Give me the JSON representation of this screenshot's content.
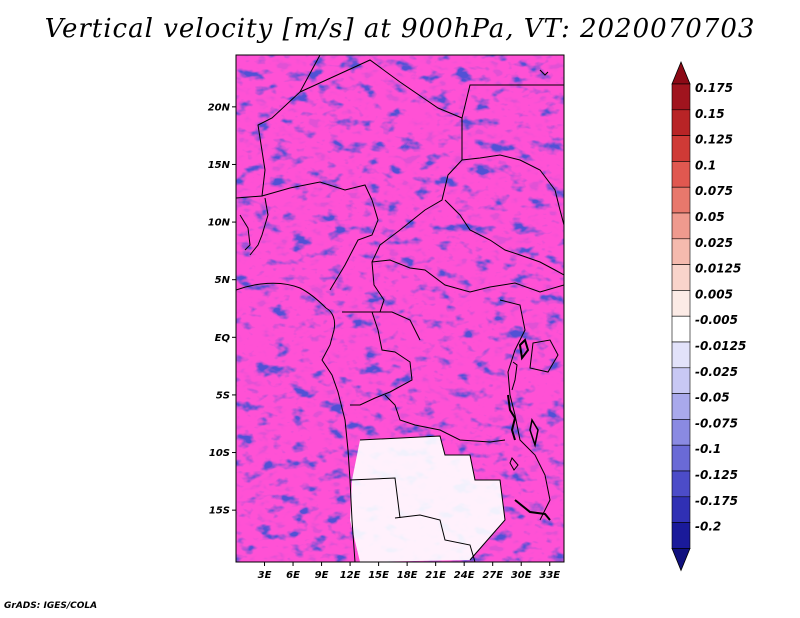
{
  "title": "Vertical velocity [m/s] at 900hPa, VT: 2020070703",
  "footer": "GrADS: IGES/COLA",
  "map": {
    "lat_range": [
      -19.5,
      24.5
    ],
    "lon_range": [
      0,
      34.5
    ],
    "lat_ticks": [
      {
        "value": 20,
        "label": "20N"
      },
      {
        "value": 15,
        "label": "15N"
      },
      {
        "value": 10,
        "label": "10N"
      },
      {
        "value": 5,
        "label": "5N"
      },
      {
        "value": 0,
        "label": "EQ"
      },
      {
        "value": -5,
        "label": "5S"
      },
      {
        "value": -10,
        "label": "10S"
      },
      {
        "value": -15,
        "label": "15S"
      }
    ],
    "lon_ticks": [
      {
        "value": 3,
        "label": "3E"
      },
      {
        "value": 6,
        "label": "6E"
      },
      {
        "value": 9,
        "label": "9E"
      },
      {
        "value": 12,
        "label": "12E"
      },
      {
        "value": 15,
        "label": "15E"
      },
      {
        "value": 18,
        "label": "18E"
      },
      {
        "value": 21,
        "label": "21E"
      },
      {
        "value": 24,
        "label": "24E"
      },
      {
        "value": 27,
        "label": "27E"
      },
      {
        "value": 30,
        "label": "30E"
      },
      {
        "value": 33,
        "label": "33E"
      }
    ]
  },
  "colorbar": {
    "levels": [
      {
        "label": "0.175",
        "color": "#a0141e"
      },
      {
        "label": "0.15",
        "color": "#b82426"
      },
      {
        "label": "0.125",
        "color": "#cf3a36"
      },
      {
        "label": "0.1",
        "color": "#e05850"
      },
      {
        "label": "0.075",
        "color": "#e8786c"
      },
      {
        "label": "0.05",
        "color": "#ef9a8e"
      },
      {
        "label": "0.025",
        "color": "#f5baae"
      },
      {
        "label": "0.0125",
        "color": "#f9d4cb"
      },
      {
        "label": "0.005",
        "color": "#fcebe6"
      },
      {
        "label": "-0.005",
        "color": "#ffffff"
      },
      {
        "label": "-0.0125",
        "color": "#e2e2fa"
      },
      {
        "label": "-0.025",
        "color": "#c8c8f4"
      },
      {
        "label": "-0.05",
        "color": "#a9a9ec"
      },
      {
        "label": "-0.075",
        "color": "#8a8ae2"
      },
      {
        "label": "-0.1",
        "color": "#6a6ad6"
      },
      {
        "label": "-0.125",
        "color": "#4c4cc8"
      },
      {
        "label": "-0.175",
        "color": "#3030b4"
      },
      {
        "label": "-0.2",
        "color": "#1a1a9a"
      }
    ],
    "top_cap_color": "#8c0a16",
    "bottom_cap_color": "#10107e"
  }
}
